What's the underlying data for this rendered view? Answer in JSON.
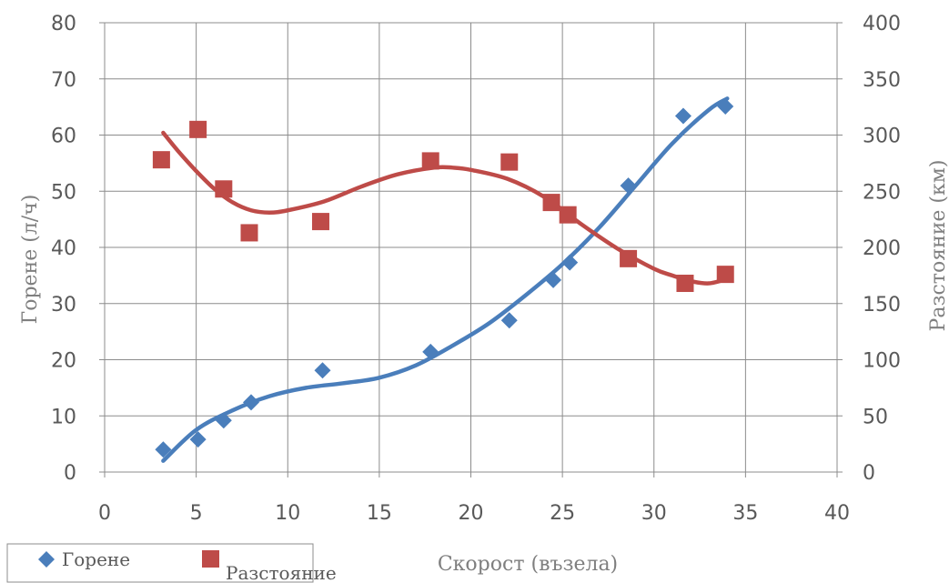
{
  "chart_data": {
    "type": "scatter",
    "xlabel": "Скорост (възела)",
    "ylabel": "Горене (л/ч)",
    "y2label": "Разстояние (км)",
    "xlim": [
      0,
      40
    ],
    "ylim": [
      0,
      80
    ],
    "y2lim": [
      0,
      400
    ],
    "x_ticks": [
      "0",
      "5",
      "10",
      "15",
      "20",
      "25",
      "30",
      "35",
      "40"
    ],
    "y_ticks": [
      "0",
      "10",
      "20",
      "30",
      "40",
      "50",
      "60",
      "70",
      "80"
    ],
    "y2_ticks": [
      "0",
      "50",
      "100",
      "150",
      "200",
      "250",
      "300",
      "350",
      "400"
    ],
    "grid": true,
    "legend_position": "bottom-left",
    "colors": {
      "gorene": "#4a7ebb",
      "razstoyanie": "#be4b48"
    },
    "series": [
      {
        "name": "Горене",
        "axis": "left",
        "marker": "diamond",
        "x": [
          3.2,
          5.1,
          6.5,
          8.0,
          11.9,
          17.8,
          22.1,
          24.5,
          25.4,
          28.6,
          31.6,
          33.9
        ],
        "y": [
          4.0,
          5.8,
          9.2,
          12.4,
          18.1,
          21.4,
          27.0,
          34.2,
          37.3,
          51.0,
          63.4,
          65.1
        ],
        "trend": [
          [
            3.2,
            2.0
          ],
          [
            5,
            7.5
          ],
          [
            7,
            11.0
          ],
          [
            9,
            13.5
          ],
          [
            11,
            15.0
          ],
          [
            13,
            15.8
          ],
          [
            15,
            16.8
          ],
          [
            17,
            19.0
          ],
          [
            19,
            22.5
          ],
          [
            21,
            26.5
          ],
          [
            23,
            31.5
          ],
          [
            25,
            37.0
          ],
          [
            27,
            43.5
          ],
          [
            29,
            51.0
          ],
          [
            31,
            58.5
          ],
          [
            33,
            64.5
          ],
          [
            34,
            66.5
          ]
        ]
      },
      {
        "name": "Разстояние",
        "axis": "right",
        "marker": "square",
        "x": [
          3.1,
          5.1,
          6.5,
          7.9,
          11.8,
          17.8,
          22.1,
          24.4,
          25.3,
          28.6,
          31.7,
          33.9
        ],
        "y": [
          278,
          305,
          252,
          213,
          223,
          277,
          276,
          240,
          229,
          190,
          168,
          176
        ],
        "trend": [
          [
            3.2,
            302
          ],
          [
            4,
            286
          ],
          [
            5,
            268
          ],
          [
            6,
            252
          ],
          [
            7,
            240
          ],
          [
            8,
            233
          ],
          [
            9,
            231
          ],
          [
            10,
            233
          ],
          [
            12,
            241
          ],
          [
            14,
            254
          ],
          [
            16,
            265
          ],
          [
            18,
            271
          ],
          [
            19,
            271
          ],
          [
            20,
            269
          ],
          [
            22,
            261
          ],
          [
            24,
            245
          ],
          [
            26,
            221
          ],
          [
            28,
            199
          ],
          [
            30,
            181
          ],
          [
            31,
            175
          ],
          [
            32,
            170
          ],
          [
            33,
            168
          ],
          [
            34,
            172
          ]
        ]
      }
    ]
  }
}
